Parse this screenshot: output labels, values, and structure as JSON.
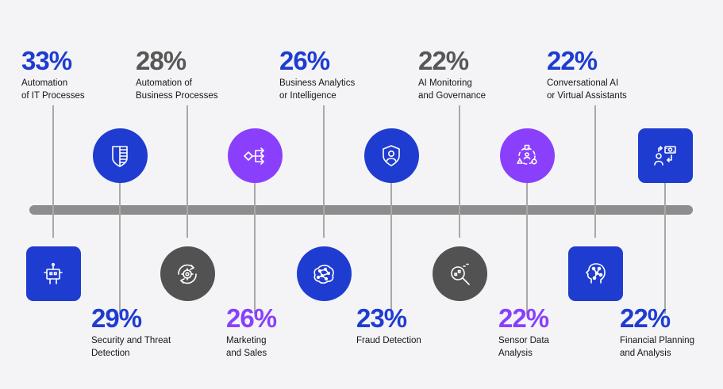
{
  "colors": {
    "blue": "#1f3cd1",
    "dark_blue": "#0f2fa8",
    "purple": "#8a3ffc",
    "gray": "#525252",
    "stroke_gray": "#575757"
  },
  "items": [
    {
      "id": "it-processes",
      "pct": "33%",
      "line1": "Automation",
      "line2": "of IT Processes",
      "pct_color": "#1f3cd1",
      "icon_color": "#1f3cd1",
      "icon_name": "robot-icon"
    },
    {
      "id": "security",
      "pct": "29%",
      "line1": "Security and Threat",
      "line2": "Detection",
      "pct_color": "#1f3cd1",
      "icon_color": "#1f3cd1",
      "icon_name": "shield-icon"
    },
    {
      "id": "business-processes",
      "pct": "28%",
      "line1": "Automation of",
      "line2": "Business Processes",
      "pct_color": "#575757",
      "icon_color": "#525252",
      "icon_name": "gear-cycle-icon"
    },
    {
      "id": "marketing",
      "pct": "26%",
      "line1": "Marketing",
      "line2": "and Sales",
      "pct_color": "#8a3ffc",
      "icon_color": "#8a3ffc",
      "icon_name": "flow-arrows-icon"
    },
    {
      "id": "analytics",
      "pct": "26%",
      "line1": "Business Analytics",
      "line2": "or Intelligence",
      "pct_color": "#1f3cd1",
      "icon_color": "#1f3cd1",
      "icon_name": "brain-network-icon"
    },
    {
      "id": "fraud",
      "pct": "23%",
      "line1": "Fraud Detection",
      "line2": "",
      "pct_color": "#1f3cd1",
      "icon_color": "#1f3cd1",
      "icon_name": "user-shield-icon"
    },
    {
      "id": "ai-monitoring",
      "pct": "22%",
      "line1": "AI Monitoring",
      "line2": "and Governance",
      "pct_color": "#575757",
      "icon_color": "#525252",
      "icon_name": "magnifier-icon"
    },
    {
      "id": "sensor",
      "pct": "22%",
      "line1": "Sensor Data",
      "line2": "Analysis",
      "pct_color": "#8a3ffc",
      "icon_color": "#8a3ffc",
      "icon_name": "shapes-cycle-icon"
    },
    {
      "id": "conversational",
      "pct": "22%",
      "line1": "Conversational AI",
      "line2": "or Virtual Assistants",
      "pct_color": "#1f3cd1",
      "icon_color": "#1f3cd1",
      "icon_name": "head-circuit-icon"
    },
    {
      "id": "financial",
      "pct": "22%",
      "line1": "Financial Planning",
      "line2": "and Analysis",
      "pct_color": "#1f3cd1",
      "icon_color": "#1f3cd1",
      "icon_name": "money-exchange-icon"
    }
  ]
}
